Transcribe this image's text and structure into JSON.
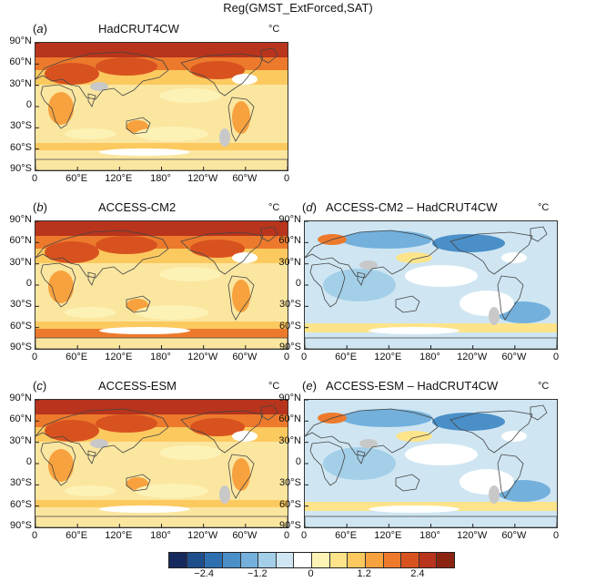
{
  "figure_title": "Reg(GMST_ExtForced,SAT)",
  "unit_label": "°C",
  "lat_labels": [
    "90°N",
    "60°N",
    "30°N",
    "0",
    "30°S",
    "60°S",
    "90°S"
  ],
  "lon_labels": [
    "0",
    "60°E",
    "120°E",
    "180°",
    "120°W",
    "60°W",
    "0"
  ],
  "panels": [
    {
      "letter": "a",
      "name": "HadCRUT4CW",
      "kind": "absolute",
      "missing": true
    },
    {
      "letter": "b",
      "name": "ACCESS-CM2",
      "kind": "absolute",
      "missing": false
    },
    {
      "letter": "c",
      "name": "ACCESS-ESM",
      "kind": "absolute",
      "missing": true
    },
    {
      "letter": "d",
      "name": "ACCESS-CM2 – HadCRUT4CW",
      "kind": "difference",
      "missing": true
    },
    {
      "letter": "e",
      "name": "ACCESS-ESM – HadCRUT4CW",
      "kind": "difference",
      "missing": true
    }
  ],
  "colorbar": {
    "tick_labels": [
      "−2.4",
      "−1.2",
      "0",
      "1.2",
      "2.4"
    ],
    "colors": [
      "#162a5e",
      "#1f4e8c",
      "#2e6fb0",
      "#4a8fc8",
      "#73b0dc",
      "#a3cfe8",
      "#cfe6f2",
      "#ffffff",
      "#fdf2b5",
      "#fde48a",
      "#fcc95f",
      "#f7a23e",
      "#ed7a2c",
      "#d8521f",
      "#b8341c",
      "#8c2412"
    ]
  }
}
